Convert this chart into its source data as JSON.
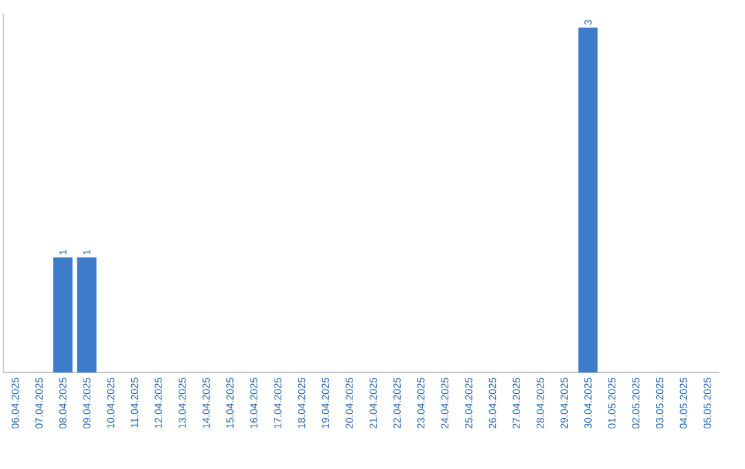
{
  "chart_data": {
    "type": "bar",
    "categories": [
      "06.04.2025",
      "07.04.2025",
      "08.04.2025",
      "09.04.2025",
      "10.04.2025",
      "11.04.2025",
      "12.04.2025",
      "13.04.2025",
      "14.04.2025",
      "15.04.2025",
      "16.04.2025",
      "17.04.2025",
      "18.04.2025",
      "19.04.2025",
      "20.04.2025",
      "21.04.2025",
      "22.04.2025",
      "23.04.2025",
      "24.04.2025",
      "25.04.2025",
      "26.04.2025",
      "27.04.2025",
      "28.04.2025",
      "29.04.2025",
      "30.04.2025",
      "01.05.2025",
      "02.05.2025",
      "03.05.2025",
      "04.05.2025",
      "05.05.2025"
    ],
    "values": [
      0,
      0,
      1,
      1,
      0,
      0,
      0,
      0,
      0,
      0,
      0,
      0,
      0,
      0,
      0,
      0,
      0,
      0,
      0,
      0,
      0,
      0,
      0,
      0,
      3,
      0,
      0,
      0,
      0,
      0
    ],
    "value_labels": [
      null,
      null,
      "1",
      "1",
      null,
      null,
      null,
      null,
      null,
      null,
      null,
      null,
      null,
      null,
      null,
      null,
      null,
      null,
      null,
      null,
      null,
      null,
      null,
      null,
      "3",
      null,
      null,
      null,
      null,
      null
    ],
    "color": "#3d7cc9",
    "ylim": [
      0,
      3.12
    ],
    "tick_labels": "x"
  }
}
